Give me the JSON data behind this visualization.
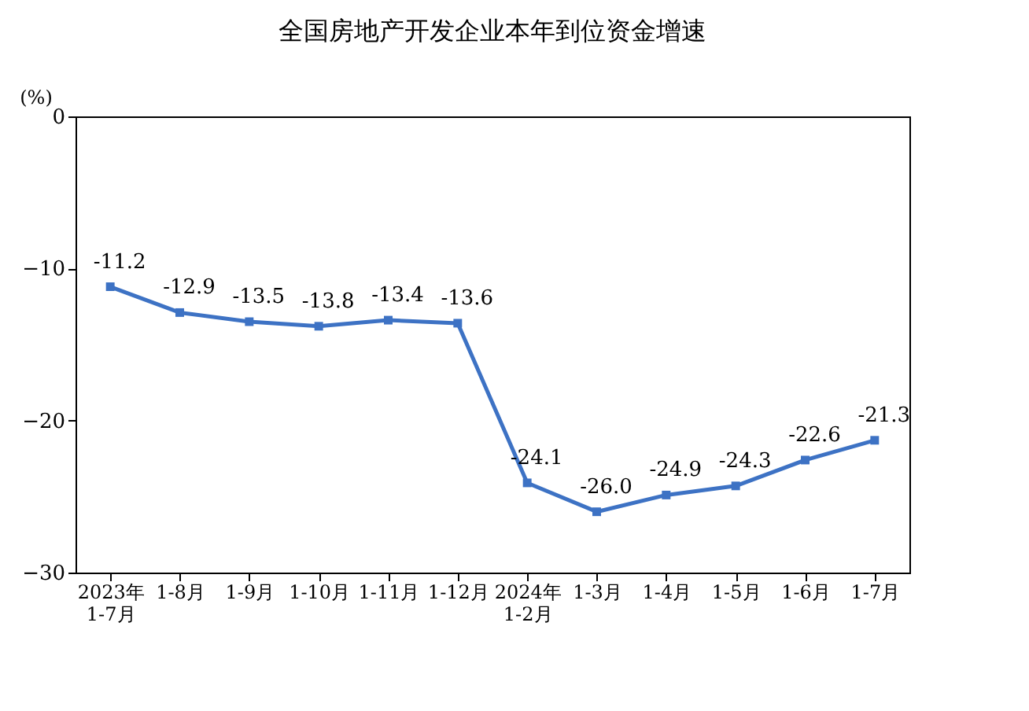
{
  "chart_data": {
    "type": "line",
    "title": "全国房地产开发企业本年到位资金增速",
    "ylabel": "(%)",
    "categories": [
      "2023年\n1-7月",
      "1-8月",
      "1-9月",
      "1-10月",
      "1-11月",
      "1-12月",
      "2024年\n1-2月",
      "1-3月",
      "1-4月",
      "1-5月",
      "1-6月",
      "1-7月"
    ],
    "series": [
      {
        "color": "#3d72c4",
        "values": [
          -11.2,
          -12.9,
          -13.5,
          -13.8,
          -13.4,
          -13.6,
          -24.1,
          -26.0,
          -24.9,
          -24.3,
          -22.6,
          -21.3
        ],
        "value_labels": [
          "-11.2",
          "-12.9",
          "-13.5",
          "-13.8",
          "-13.4",
          "-13.6",
          "-24.1",
          "-26.0",
          "-24.9",
          "-24.3",
          "-22.6",
          "-21.3"
        ]
      }
    ],
    "ylim": [
      -30,
      0
    ],
    "yticks": [
      0,
      -10,
      -20,
      -30
    ],
    "grid": false,
    "marker": "square",
    "line_style": "solid"
  }
}
